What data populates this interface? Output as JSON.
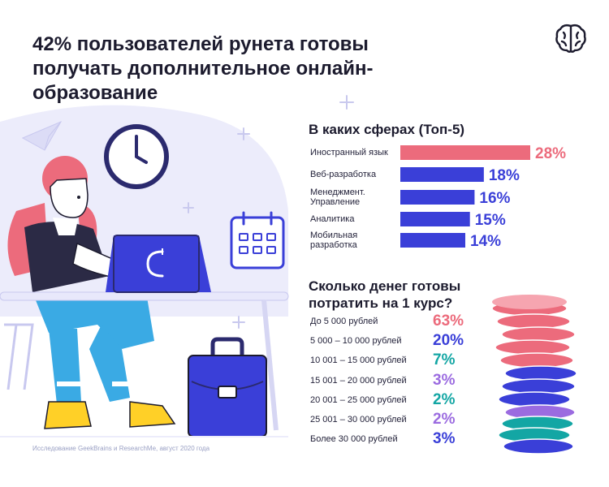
{
  "title": "42% пользователей рунета готовы получать дополнительное онлайн-образование",
  "source_note": "Исследование GeekBrains и ResearchMe, август 2020 года",
  "colors": {
    "accent_pink": "#ec6b7c",
    "accent_blue": "#3a3fd8",
    "accent_teal": "#13a6a4",
    "accent_purple": "#9b6be0",
    "lavender_bg": "#ececfb",
    "dark_navy": "#1c1b2e"
  },
  "chart_data": [
    {
      "type": "bar",
      "title": "В каких сферах (Топ-5)",
      "categories": [
        "Иностранный язык",
        "Веб-разработка",
        "Менеджмент. Управление",
        "Аналитика",
        "Мобильная разработка"
      ],
      "values": [
        28,
        18,
        16,
        15,
        14
      ],
      "value_labels": [
        "28%",
        "18%",
        "16%",
        "15%",
        "14%"
      ],
      "bar_colors": [
        "#ec6b7c",
        "#3a3fd8",
        "#3a3fd8",
        "#3a3fd8",
        "#3a3fd8"
      ],
      "orientation": "horizontal",
      "unit": "%"
    },
    {
      "type": "table",
      "title": "Сколько денег готовы потратить на 1 курс?",
      "categories": [
        "До 5 000 рублей",
        "5 000 – 10 000 рублей",
        "10 001 – 15 000 рублей",
        "15 001 – 20 000 рублей",
        "20 001 – 25 000 рублей",
        "25 001 – 30 000 рублей",
        "Более 30 000 рублей"
      ],
      "values": [
        63,
        20,
        7,
        3,
        2,
        2,
        3
      ],
      "value_labels": [
        "63%",
        "20%",
        "7%",
        "3%",
        "2%",
        "2%",
        "3%"
      ],
      "value_colors": [
        "#ec6b7c",
        "#3a3fd8",
        "#13a6a4",
        "#9b6be0",
        "#13a6a4",
        "#9b6be0",
        "#3a3fd8"
      ],
      "unit": "%"
    }
  ],
  "icons": [
    "brain-icon",
    "paper-plane-icon",
    "clock-icon",
    "calendar-icon",
    "laptop-icon",
    "briefcase-icon",
    "coin-stack-icon"
  ]
}
